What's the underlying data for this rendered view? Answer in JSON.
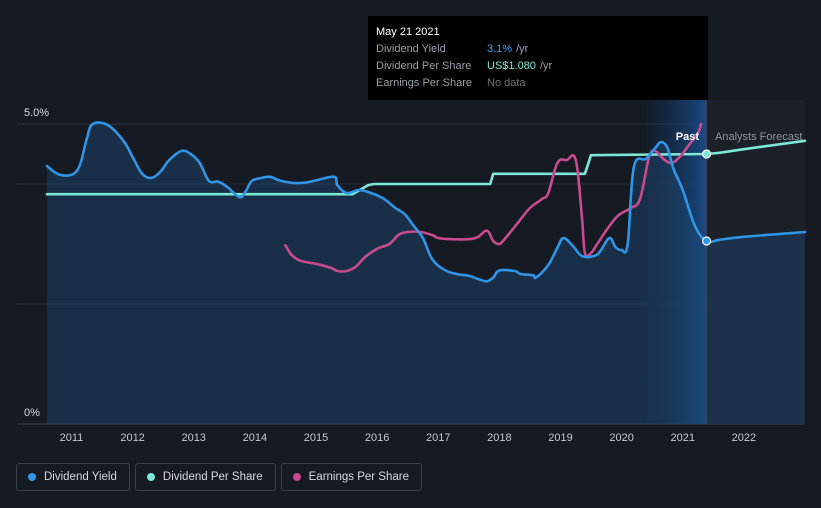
{
  "tooltip": {
    "date": "May 21 2021",
    "rows": [
      {
        "label": "Dividend Yield",
        "value": "3.1%",
        "unit": "/yr"
      },
      {
        "label": "Dividend Per Share",
        "value": "US$1.080",
        "unit": "/yr"
      },
      {
        "label": "Earnings Per Share",
        "value": "No data",
        "unit": ""
      }
    ]
  },
  "labels": {
    "past": "Past",
    "forecast": "Analysts Forecast"
  },
  "legend": [
    {
      "label": "Dividend Yield",
      "color": "#2f95e6"
    },
    {
      "label": "Dividend Per Share",
      "color": "#7de8d6"
    },
    {
      "label": "Earnings Per Share",
      "color": "#c84b8f"
    }
  ],
  "chart_data": {
    "type": "line",
    "x_ticks": [
      "2011",
      "2012",
      "2013",
      "2014",
      "2015",
      "2016",
      "2017",
      "2018",
      "2019",
      "2020",
      "2021",
      "2022"
    ],
    "y_tick_labels": [
      "5.0%",
      "0%"
    ],
    "ylim": [
      0,
      5.0
    ],
    "xlim": [
      2010.6,
      2023.0
    ],
    "past_end": 2021.39,
    "series": [
      {
        "name": "Dividend Yield",
        "color": "#2f95e6",
        "points": [
          [
            2010.6,
            4.3
          ],
          [
            2010.75,
            4.18
          ],
          [
            2010.9,
            4.14
          ],
          [
            2011.05,
            4.18
          ],
          [
            2011.15,
            4.35
          ],
          [
            2011.25,
            4.75
          ],
          [
            2011.35,
            5.0
          ],
          [
            2011.6,
            4.98
          ],
          [
            2011.85,
            4.72
          ],
          [
            2012.0,
            4.45
          ],
          [
            2012.15,
            4.18
          ],
          [
            2012.3,
            4.1
          ],
          [
            2012.45,
            4.2
          ],
          [
            2012.6,
            4.4
          ],
          [
            2012.8,
            4.55
          ],
          [
            2012.95,
            4.5
          ],
          [
            2013.1,
            4.35
          ],
          [
            2013.25,
            4.05
          ],
          [
            2013.4,
            4.04
          ],
          [
            2013.55,
            3.95
          ],
          [
            2013.75,
            3.78
          ],
          [
            2013.85,
            3.88
          ],
          [
            2013.95,
            4.05
          ],
          [
            2014.1,
            4.1
          ],
          [
            2014.25,
            4.12
          ],
          [
            2014.4,
            4.06
          ],
          [
            2014.6,
            4.02
          ],
          [
            2014.8,
            4.02
          ],
          [
            2015.0,
            4.06
          ],
          [
            2015.3,
            4.12
          ],
          [
            2015.35,
            3.98
          ],
          [
            2015.5,
            3.85
          ],
          [
            2015.7,
            3.9
          ],
          [
            2015.9,
            3.85
          ],
          [
            2016.1,
            3.76
          ],
          [
            2016.3,
            3.6
          ],
          [
            2016.45,
            3.5
          ],
          [
            2016.6,
            3.3
          ],
          [
            2016.75,
            3.1
          ],
          [
            2016.9,
            2.75
          ],
          [
            2017.1,
            2.57
          ],
          [
            2017.3,
            2.5
          ],
          [
            2017.5,
            2.47
          ],
          [
            2017.7,
            2.4
          ],
          [
            2017.8,
            2.38
          ],
          [
            2017.9,
            2.44
          ],
          [
            2018.0,
            2.56
          ],
          [
            2018.25,
            2.55
          ],
          [
            2018.35,
            2.5
          ],
          [
            2018.55,
            2.48
          ],
          [
            2018.6,
            2.44
          ],
          [
            2018.8,
            2.65
          ],
          [
            2018.95,
            2.94
          ],
          [
            2019.05,
            3.1
          ],
          [
            2019.2,
            2.97
          ],
          [
            2019.35,
            2.8
          ],
          [
            2019.55,
            2.8
          ],
          [
            2019.65,
            2.88
          ],
          [
            2019.8,
            3.1
          ],
          [
            2019.9,
            2.95
          ],
          [
            2020.0,
            2.9
          ],
          [
            2020.1,
            3.0
          ],
          [
            2020.2,
            4.28
          ],
          [
            2020.4,
            4.42
          ],
          [
            2020.55,
            4.6
          ],
          [
            2020.65,
            4.7
          ],
          [
            2020.75,
            4.6
          ],
          [
            2020.85,
            4.25
          ],
          [
            2021.0,
            3.9
          ],
          [
            2021.2,
            3.3
          ],
          [
            2021.39,
            3.05
          ],
          [
            2021.6,
            3.07
          ],
          [
            2022.0,
            3.12
          ],
          [
            2023.0,
            3.2
          ]
        ]
      },
      {
        "name": "Dividend Per Share",
        "color": "#7de8d6",
        "points": [
          [
            2010.6,
            3.83
          ],
          [
            2015.45,
            3.83
          ],
          [
            2015.6,
            3.83
          ],
          [
            2015.85,
            3.98
          ],
          [
            2015.95,
            4.0
          ],
          [
            2017.85,
            4.0
          ],
          [
            2017.9,
            4.17
          ],
          [
            2019.35,
            4.17
          ],
          [
            2019.4,
            4.17
          ],
          [
            2019.5,
            4.48
          ],
          [
            2021.39,
            4.5
          ],
          [
            2021.6,
            4.52
          ],
          [
            2022.0,
            4.58
          ],
          [
            2023.0,
            4.72
          ]
        ]
      },
      {
        "name": "Earnings Per Share",
        "color": "#c84b8f",
        "points": [
          [
            2014.5,
            2.98
          ],
          [
            2014.6,
            2.82
          ],
          [
            2014.75,
            2.72
          ],
          [
            2015.0,
            2.67
          ],
          [
            2015.25,
            2.6
          ],
          [
            2015.35,
            2.55
          ],
          [
            2015.5,
            2.55
          ],
          [
            2015.65,
            2.62
          ],
          [
            2015.8,
            2.78
          ],
          [
            2016.0,
            2.92
          ],
          [
            2016.2,
            3.0
          ],
          [
            2016.35,
            3.15
          ],
          [
            2016.5,
            3.2
          ],
          [
            2016.7,
            3.2
          ],
          [
            2016.9,
            3.15
          ],
          [
            2017.0,
            3.1
          ],
          [
            2017.2,
            3.08
          ],
          [
            2017.5,
            3.08
          ],
          [
            2017.65,
            3.12
          ],
          [
            2017.8,
            3.22
          ],
          [
            2017.9,
            3.05
          ],
          [
            2018.0,
            3.0
          ],
          [
            2018.1,
            3.1
          ],
          [
            2018.3,
            3.35
          ],
          [
            2018.5,
            3.6
          ],
          [
            2018.7,
            3.75
          ],
          [
            2018.8,
            3.85
          ],
          [
            2018.95,
            4.35
          ],
          [
            2019.1,
            4.4
          ],
          [
            2019.25,
            4.4
          ],
          [
            2019.35,
            3.45
          ],
          [
            2019.4,
            2.85
          ],
          [
            2019.5,
            2.85
          ],
          [
            2019.6,
            3.0
          ],
          [
            2019.8,
            3.3
          ],
          [
            2019.95,
            3.48
          ],
          [
            2020.15,
            3.6
          ],
          [
            2020.3,
            3.75
          ],
          [
            2020.45,
            4.45
          ],
          [
            2020.55,
            4.55
          ],
          [
            2020.65,
            4.45
          ],
          [
            2020.8,
            4.35
          ],
          [
            2020.95,
            4.45
          ],
          [
            2021.1,
            4.65
          ],
          [
            2021.25,
            4.85
          ],
          [
            2021.3,
            5.0
          ]
        ]
      }
    ]
  }
}
